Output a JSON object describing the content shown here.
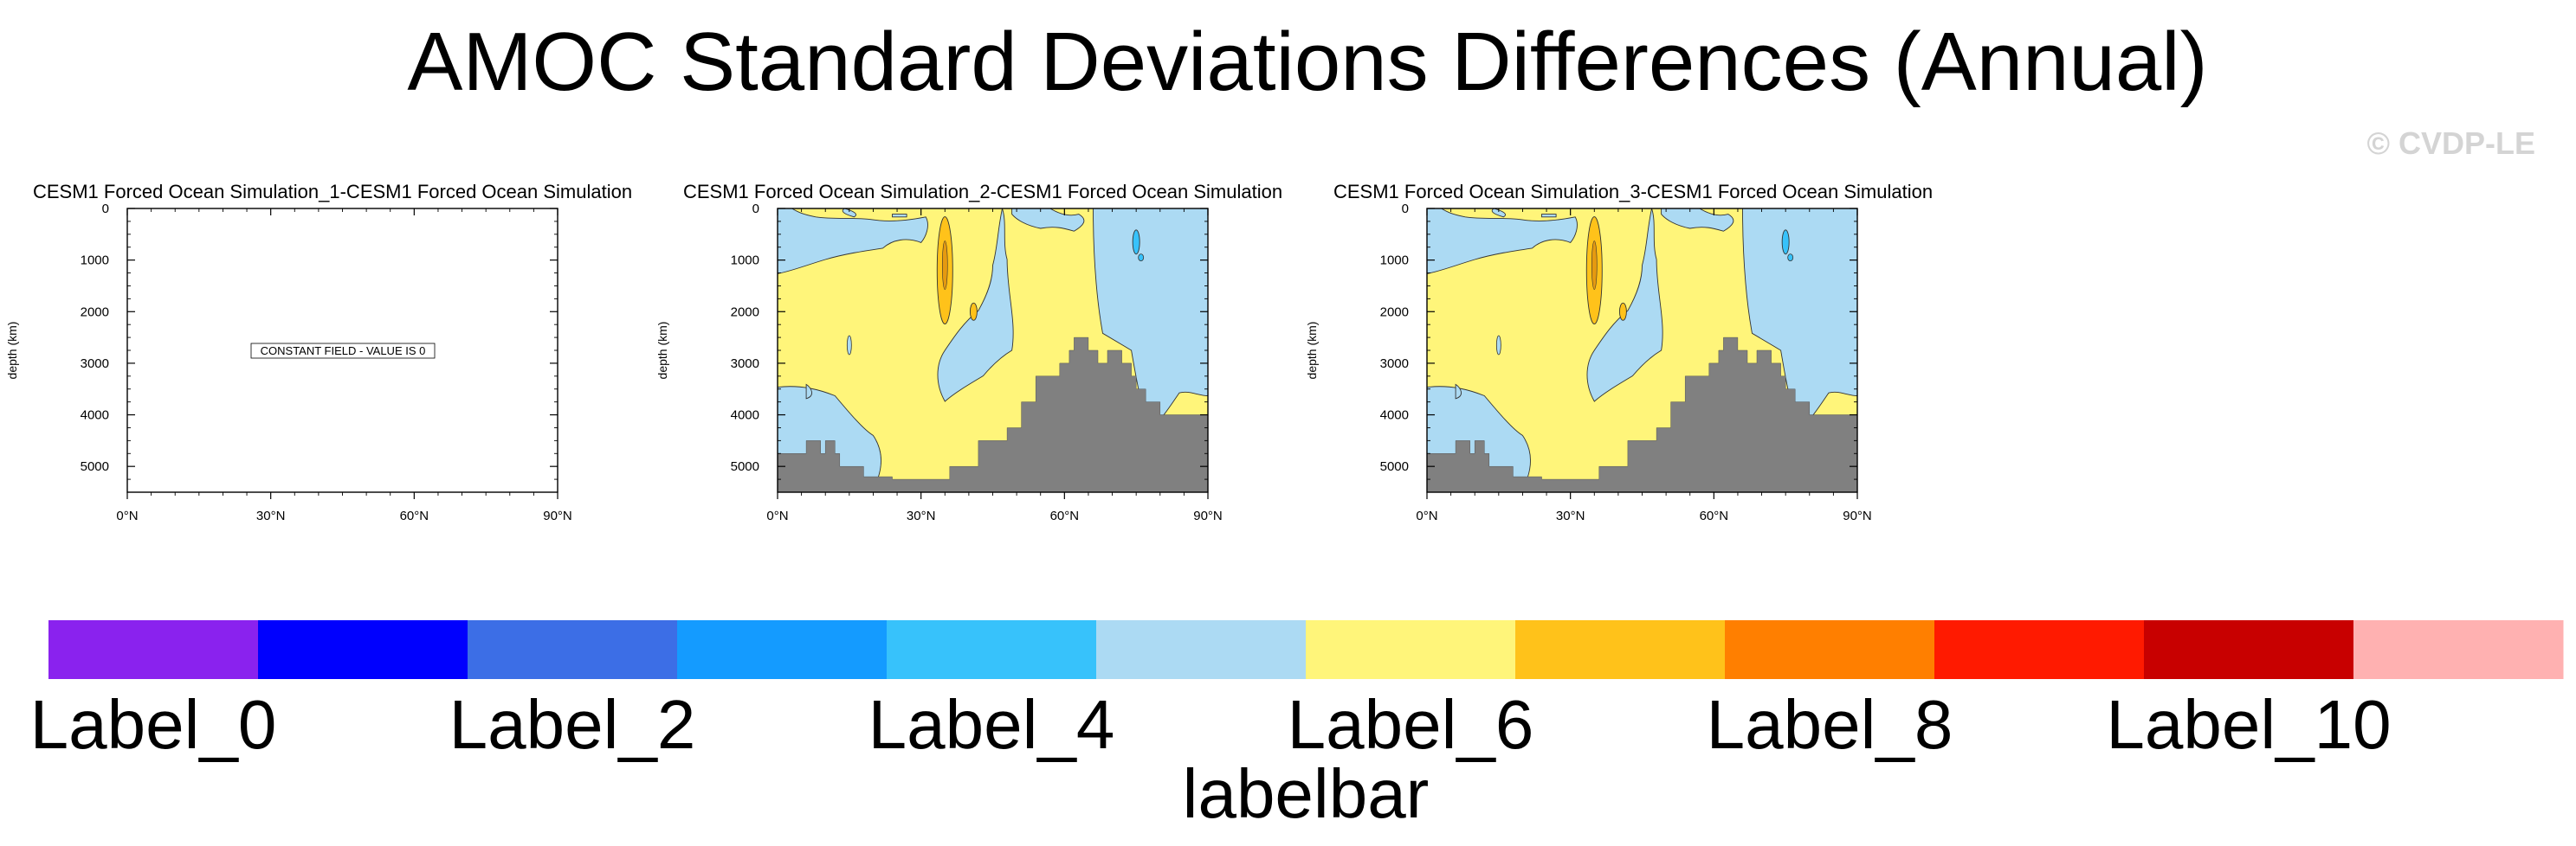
{
  "chart_data": {
    "type": "contour",
    "title": "AMOC Standard Deviations Differences (Annual)",
    "watermark": "© CVDP-LE",
    "xlim": [
      0,
      90
    ],
    "ylim": [
      5500,
      0
    ],
    "x_ticks": [
      0,
      30,
      60,
      90
    ],
    "x_tick_labels": [
      "0°N",
      "30°N",
      "60°N",
      "90°N"
    ],
    "y_ticks": [
      0,
      1000,
      2000,
      3000,
      4000,
      5000
    ],
    "y_tick_labels": [
      "0",
      "1000",
      "2000",
      "3000",
      "4000",
      "5000"
    ],
    "ylabel": "depth (km)",
    "panels": [
      {
        "title": "CESM1 Forced Ocean Simulation_1-CESM1 Forced Ocean Simulation",
        "constant_field": true,
        "annotation": "CONSTANT FIELD - VALUE IS 0"
      },
      {
        "title": "CESM1 Forced Ocean Simulation_2-CESM1 Forced Ocean Simulation",
        "constant_field": false
      },
      {
        "title": "CESM1 Forced Ocean Simulation_3-CESM1 Forced Ocean Simulation",
        "constant_field": false
      }
    ],
    "labelbar": {
      "title": "labelbar",
      "colors": [
        "#8a22ee",
        "#0000fe",
        "#3c6ee6",
        "#149bff",
        "#37c2fb",
        "#acdaf3",
        "#fff57a",
        "#ffc21a",
        "#ff7f00",
        "#ff1a00",
        "#c80000",
        "#ffb1b1"
      ],
      "labels": [
        "Label_0",
        "Label_2",
        "Label_4",
        "Label_6",
        "Label_8",
        "Label_10"
      ]
    },
    "land_color": "#808080",
    "bathymetry": [
      [
        0,
        4750
      ],
      [
        6,
        4750
      ],
      [
        6,
        4500
      ],
      [
        9,
        4500
      ],
      [
        9,
        4750
      ],
      [
        10,
        4750
      ],
      [
        10,
        4500
      ],
      [
        12,
        4500
      ],
      [
        12,
        4750
      ],
      [
        13,
        4750
      ],
      [
        13,
        5000
      ],
      [
        18,
        5000
      ],
      [
        18,
        5200
      ],
      [
        24,
        5200
      ],
      [
        24,
        5250
      ],
      [
        36,
        5250
      ],
      [
        36,
        5000
      ],
      [
        42,
        5000
      ],
      [
        42,
        4500
      ],
      [
        48,
        4500
      ],
      [
        48,
        4250
      ],
      [
        51,
        4250
      ],
      [
        51,
        3750
      ],
      [
        54,
        3750
      ],
      [
        54,
        3250
      ],
      [
        59,
        3250
      ],
      [
        59,
        3000
      ],
      [
        61,
        3000
      ],
      [
        61,
        2750
      ],
      [
        62,
        2750
      ],
      [
        62,
        2500
      ],
      [
        65,
        2500
      ],
      [
        65,
        2750
      ],
      [
        67,
        2750
      ],
      [
        67,
        3000
      ],
      [
        69,
        3000
      ],
      [
        69,
        2750
      ],
      [
        72,
        2750
      ],
      [
        72,
        3000
      ],
      [
        74,
        3000
      ],
      [
        74,
        3250
      ],
      [
        75,
        3250
      ],
      [
        75,
        3500
      ],
      [
        77,
        3500
      ],
      [
        77,
        3750
      ],
      [
        80,
        3750
      ],
      [
        80,
        4000
      ],
      [
        90,
        4000
      ]
    ]
  }
}
